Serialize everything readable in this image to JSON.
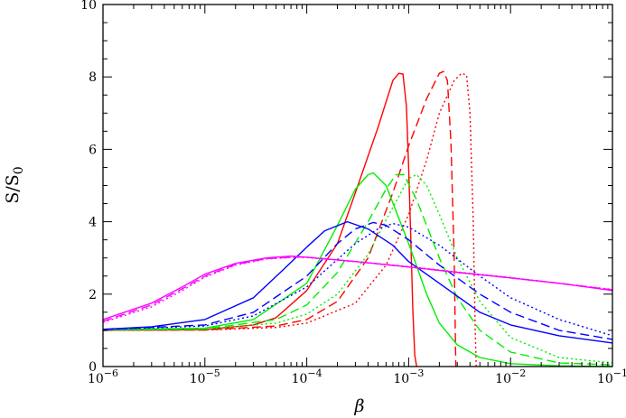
{
  "chart_data": {
    "type": "line",
    "xscale": "log",
    "xlim": [
      1e-06,
      0.1
    ],
    "ylim": [
      0,
      10
    ],
    "grid": false,
    "xlabel": "β",
    "ylabel": "S/S",
    "ylabel_subscript": "0",
    "x_ticks": [
      {
        "base": "10",
        "exp": "−6",
        "value": 1e-06
      },
      {
        "base": "10",
        "exp": "−5",
        "value": 1e-05
      },
      {
        "base": "10",
        "exp": "−4",
        "value": 0.0001
      },
      {
        "base": "10",
        "exp": "−3",
        "value": 0.001
      },
      {
        "base": "10",
        "exp": "−2",
        "value": 0.01
      },
      {
        "base": "10",
        "exp": "−1",
        "value": 0.1
      }
    ],
    "y_ticks": [
      "0",
      "2",
      "4",
      "6",
      "8",
      "10"
    ],
    "series": [
      {
        "color": "#ff0000",
        "dash": "solid",
        "points": [
          [
            1e-06,
            1.0
          ],
          [
            1e-05,
            1.02
          ],
          [
            3e-05,
            1.15
          ],
          [
            5e-05,
            1.35
          ],
          [
            0.0001,
            2.1
          ],
          [
            0.0002,
            3.4
          ],
          [
            0.0003,
            4.8
          ],
          [
            0.0005,
            6.6
          ],
          [
            0.0007,
            7.9
          ],
          [
            0.0008,
            8.1
          ],
          [
            0.00088,
            8.08
          ],
          [
            0.00095,
            7.2
          ],
          [
            0.001,
            5.5
          ],
          [
            0.00105,
            3.5
          ],
          [
            0.0011,
            1.5
          ],
          [
            0.00115,
            0.3
          ],
          [
            0.0012,
            0.0
          ]
        ]
      },
      {
        "color": "#ff0000",
        "dash": "dashed",
        "points": [
          [
            1e-06,
            1.0
          ],
          [
            1e-05,
            1.01
          ],
          [
            5e-05,
            1.12
          ],
          [
            0.0001,
            1.3
          ],
          [
            0.0002,
            1.8
          ],
          [
            0.0004,
            3.0
          ],
          [
            0.0007,
            4.8
          ],
          [
            0.001,
            6.1
          ],
          [
            0.0015,
            7.4
          ],
          [
            0.002,
            8.1
          ],
          [
            0.0022,
            8.15
          ],
          [
            0.0024,
            7.9
          ],
          [
            0.0026,
            6.2
          ],
          [
            0.0028,
            3.0
          ],
          [
            0.0029,
            0.0
          ]
        ]
      },
      {
        "color": "#ff0000",
        "dash": "dotted",
        "points": [
          [
            1e-06,
            1.0
          ],
          [
            1e-05,
            1.01
          ],
          [
            5e-05,
            1.08
          ],
          [
            0.0001,
            1.2
          ],
          [
            0.0003,
            1.75
          ],
          [
            0.0006,
            2.8
          ],
          [
            0.001,
            4.2
          ],
          [
            0.0015,
            5.7
          ],
          [
            0.002,
            7.0
          ],
          [
            0.0028,
            7.9
          ],
          [
            0.0033,
            8.1
          ],
          [
            0.0037,
            8.05
          ],
          [
            0.004,
            7.0
          ],
          [
            0.0043,
            4.0
          ],
          [
            0.0045,
            1.0
          ],
          [
            0.0046,
            0.0
          ]
        ]
      },
      {
        "color": "#00ee00",
        "dash": "solid",
        "points": [
          [
            1e-06,
            1.02
          ],
          [
            1e-05,
            1.06
          ],
          [
            3e-05,
            1.3
          ],
          [
            0.0001,
            2.3
          ],
          [
            0.0002,
            3.9
          ],
          [
            0.0003,
            4.9
          ],
          [
            0.0004,
            5.3
          ],
          [
            0.00045,
            5.35
          ],
          [
            0.0006,
            5.0
          ],
          [
            0.001,
            3.4
          ],
          [
            0.0015,
            2.0
          ],
          [
            0.002,
            1.2
          ],
          [
            0.003,
            0.6
          ],
          [
            0.005,
            0.25
          ],
          [
            0.01,
            0.08
          ],
          [
            0.03,
            0.02
          ],
          [
            0.1,
            0.0
          ]
        ]
      },
      {
        "color": "#00ee00",
        "dash": "dashed",
        "points": [
          [
            1e-06,
            1.01
          ],
          [
            1e-05,
            1.04
          ],
          [
            5e-05,
            1.3
          ],
          [
            0.0001,
            1.7
          ],
          [
            0.0002,
            2.6
          ],
          [
            0.0004,
            4.0
          ],
          [
            0.0006,
            4.9
          ],
          [
            0.00075,
            5.3
          ],
          [
            0.0009,
            5.3
          ],
          [
            0.0012,
            4.6
          ],
          [
            0.002,
            3.0
          ],
          [
            0.003,
            1.9
          ],
          [
            0.005,
            1.0
          ],
          [
            0.01,
            0.4
          ],
          [
            0.03,
            0.1
          ],
          [
            0.1,
            0.05
          ]
        ]
      },
      {
        "color": "#00ee00",
        "dash": "dotted",
        "points": [
          [
            1e-06,
            1.0
          ],
          [
            1e-05,
            1.03
          ],
          [
            5e-05,
            1.2
          ],
          [
            0.0001,
            1.45
          ],
          [
            0.0002,
            2.0
          ],
          [
            0.0004,
            3.1
          ],
          [
            0.0007,
            4.4
          ],
          [
            0.001,
            5.2
          ],
          [
            0.0012,
            5.3
          ],
          [
            0.0015,
            5.0
          ],
          [
            0.002,
            4.2
          ],
          [
            0.003,
            3.0
          ],
          [
            0.005,
            1.8
          ],
          [
            0.01,
            0.8
          ],
          [
            0.03,
            0.25
          ],
          [
            0.1,
            0.1
          ]
        ]
      },
      {
        "color": "#0000ff",
        "dash": "solid",
        "points": [
          [
            1e-06,
            1.03
          ],
          [
            3e-06,
            1.1
          ],
          [
            1e-05,
            1.3
          ],
          [
            3e-05,
            1.9
          ],
          [
            6e-05,
            2.7
          ],
          [
            0.0001,
            3.3
          ],
          [
            0.00015,
            3.75
          ],
          [
            0.00025,
            4.0
          ],
          [
            0.0004,
            3.8
          ],
          [
            0.0007,
            3.35
          ],
          [
            0.001,
            2.9
          ],
          [
            0.002,
            2.3
          ],
          [
            0.005,
            1.5
          ],
          [
            0.01,
            1.15
          ],
          [
            0.03,
            0.85
          ],
          [
            0.1,
            0.65
          ]
        ]
      },
      {
        "color": "#0000ff",
        "dash": "dashed",
        "points": [
          [
            1e-06,
            1.02
          ],
          [
            1e-05,
            1.15
          ],
          [
            3e-05,
            1.5
          ],
          [
            0.0001,
            2.5
          ],
          [
            0.0002,
            3.4
          ],
          [
            0.0003,
            3.8
          ],
          [
            0.00045,
            3.98
          ],
          [
            0.0006,
            3.9
          ],
          [
            0.001,
            3.5
          ],
          [
            0.002,
            2.8
          ],
          [
            0.005,
            2.0
          ],
          [
            0.01,
            1.5
          ],
          [
            0.03,
            1.0
          ],
          [
            0.1,
            0.75
          ]
        ]
      },
      {
        "color": "#0000ff",
        "dash": "dotted",
        "points": [
          [
            1e-06,
            1.02
          ],
          [
            1e-05,
            1.12
          ],
          [
            3e-05,
            1.4
          ],
          [
            0.0001,
            2.2
          ],
          [
            0.0003,
            3.4
          ],
          [
            0.0005,
            3.8
          ],
          [
            0.0007,
            3.95
          ],
          [
            0.001,
            3.85
          ],
          [
            0.002,
            3.35
          ],
          [
            0.005,
            2.5
          ],
          [
            0.01,
            1.9
          ],
          [
            0.03,
            1.3
          ],
          [
            0.1,
            0.85
          ]
        ]
      },
      {
        "color": "#ff00ff",
        "dash": "solid",
        "points": [
          [
            1e-06,
            1.3
          ],
          [
            3e-06,
            1.75
          ],
          [
            6e-06,
            2.2
          ],
          [
            1e-05,
            2.55
          ],
          [
            2e-05,
            2.85
          ],
          [
            4e-05,
            3.0
          ],
          [
            7e-05,
            3.05
          ],
          [
            0.0001,
            3.02
          ],
          [
            0.0003,
            2.9
          ],
          [
            0.001,
            2.75
          ],
          [
            0.003,
            2.6
          ],
          [
            0.01,
            2.45
          ],
          [
            0.03,
            2.3
          ],
          [
            0.1,
            2.1
          ]
        ]
      },
      {
        "color": "#ff00ff",
        "dash": "dashed",
        "points": [
          [
            1e-06,
            1.25
          ],
          [
            3e-06,
            1.7
          ],
          [
            6e-06,
            2.15
          ],
          [
            1e-05,
            2.5
          ],
          [
            2e-05,
            2.82
          ],
          [
            4e-05,
            2.98
          ],
          [
            8e-05,
            3.03
          ],
          [
            0.0001,
            3.02
          ],
          [
            0.0003,
            2.9
          ],
          [
            0.001,
            2.75
          ],
          [
            0.003,
            2.6
          ],
          [
            0.01,
            2.45
          ],
          [
            0.03,
            2.3
          ],
          [
            0.1,
            2.12
          ]
        ]
      },
      {
        "color": "#ff00ff",
        "dash": "dotted",
        "points": [
          [
            1e-06,
            1.22
          ],
          [
            3e-06,
            1.65
          ],
          [
            6e-06,
            2.1
          ],
          [
            1e-05,
            2.47
          ],
          [
            2e-05,
            2.8
          ],
          [
            4e-05,
            2.97
          ],
          [
            8e-05,
            3.02
          ],
          [
            0.0001,
            3.01
          ],
          [
            0.0003,
            2.9
          ],
          [
            0.001,
            2.76
          ],
          [
            0.003,
            2.61
          ],
          [
            0.01,
            2.46
          ],
          [
            0.03,
            2.3
          ],
          [
            0.1,
            2.13
          ]
        ]
      }
    ]
  }
}
